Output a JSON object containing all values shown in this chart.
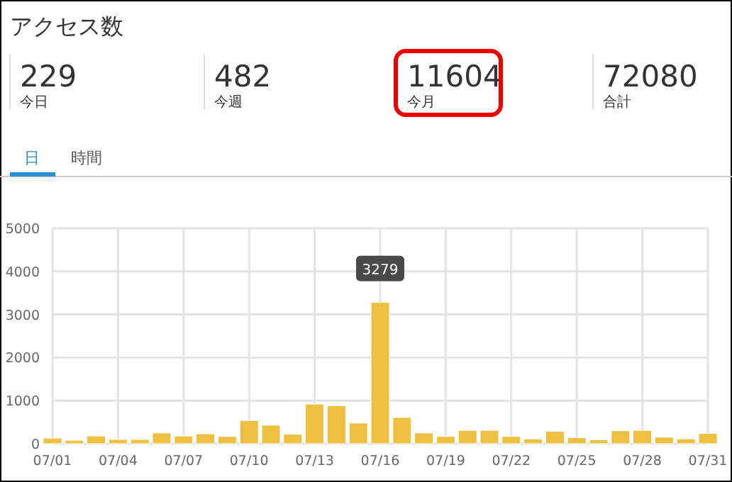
{
  "chart_data": [
    {
      "type": "other",
      "title": "アクセス数",
      "annotations": [
        "229",
        "今日",
        "482",
        "今週",
        "11604",
        "今月",
        "72080",
        "合計",
        "日",
        "時間"
      ]
    },
    {
      "type": "bar",
      "categories": [
        "07/01",
        null,
        null,
        "07/04",
        null,
        null,
        "07/07",
        null,
        null,
        "07/10",
        null,
        null,
        "07/13",
        null,
        null,
        "07/16",
        null,
        null,
        "07/19",
        null,
        null,
        "07/22",
        null,
        null,
        "07/25",
        null,
        null,
        "07/28",
        null,
        null,
        "07/31"
      ],
      "values": [
        130,
        80,
        180,
        100,
        100,
        250,
        180,
        230,
        170,
        540,
        430,
        220,
        920,
        880,
        480,
        3279,
        610,
        250,
        170,
        310,
        310,
        170,
        110,
        290,
        140,
        90,
        300,
        310,
        150,
        110,
        240
      ],
      "color": "#eec042",
      "ylim": [
        0,
        5000
      ],
      "yticks": [
        0,
        1000,
        2000,
        3000,
        4000,
        5000
      ],
      "grid": true,
      "annotations": [
        {
          "text": "3279",
          "x": "07/16",
          "y": 3279
        }
      ]
    }
  ]
}
